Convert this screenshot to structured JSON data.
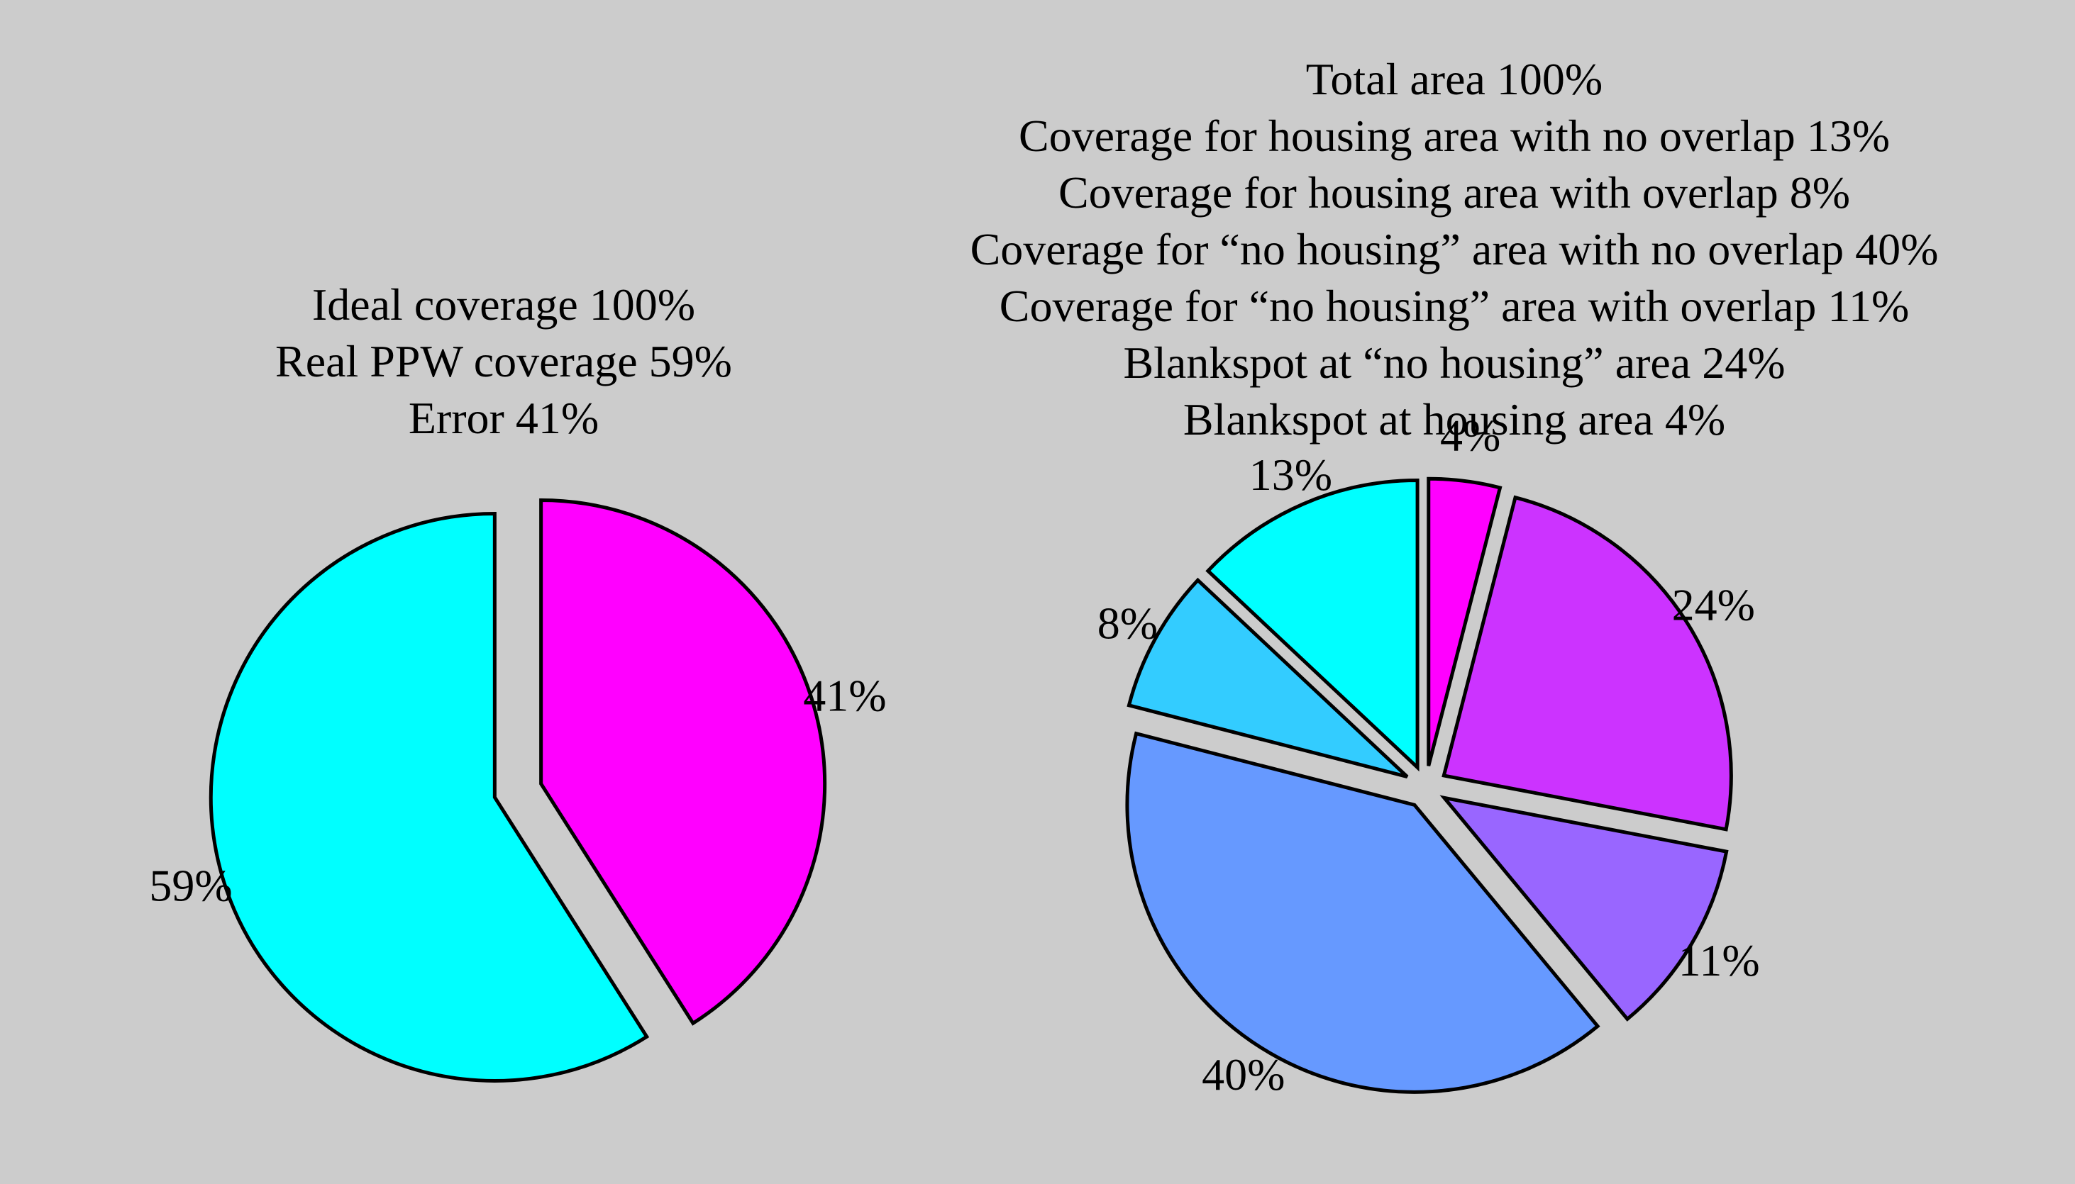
{
  "chart_data": [
    {
      "type": "pie",
      "caption_lines": [
        "Ideal coverage 100%",
        "Real PPW coverage 59%",
        "Error 41%"
      ],
      "slices": [
        {
          "value": 41,
          "label": "41%",
          "color": "#ff00ff"
        },
        {
          "value": 59,
          "label": "59%",
          "color": "#00ffff"
        }
      ],
      "exploded": true
    },
    {
      "type": "pie",
      "caption_lines": [
        "Total area 100%",
        "Coverage for housing area with no overlap 13%",
        "Coverage for housing area with overlap 8%",
        "Coverage for “no housing” area with no overlap 40%",
        "Coverage for “no housing” area with overlap 11%",
        "Blankspot at “no housing” area 24%",
        "Blankspot at housing area 4%"
      ],
      "slices": [
        {
          "value": 4,
          "label": "4%",
          "color": "#ff00ff"
        },
        {
          "value": 24,
          "label": "24%",
          "color": "#cc33ff"
        },
        {
          "value": 11,
          "label": "11%",
          "color": "#9966ff"
        },
        {
          "value": 40,
          "label": "40%",
          "color": "#6699ff"
        },
        {
          "value": 8,
          "label": "8%",
          "color": "#33ccff"
        },
        {
          "value": 13,
          "label": "13%",
          "color": "#00ffff"
        }
      ],
      "exploded": true
    }
  ]
}
